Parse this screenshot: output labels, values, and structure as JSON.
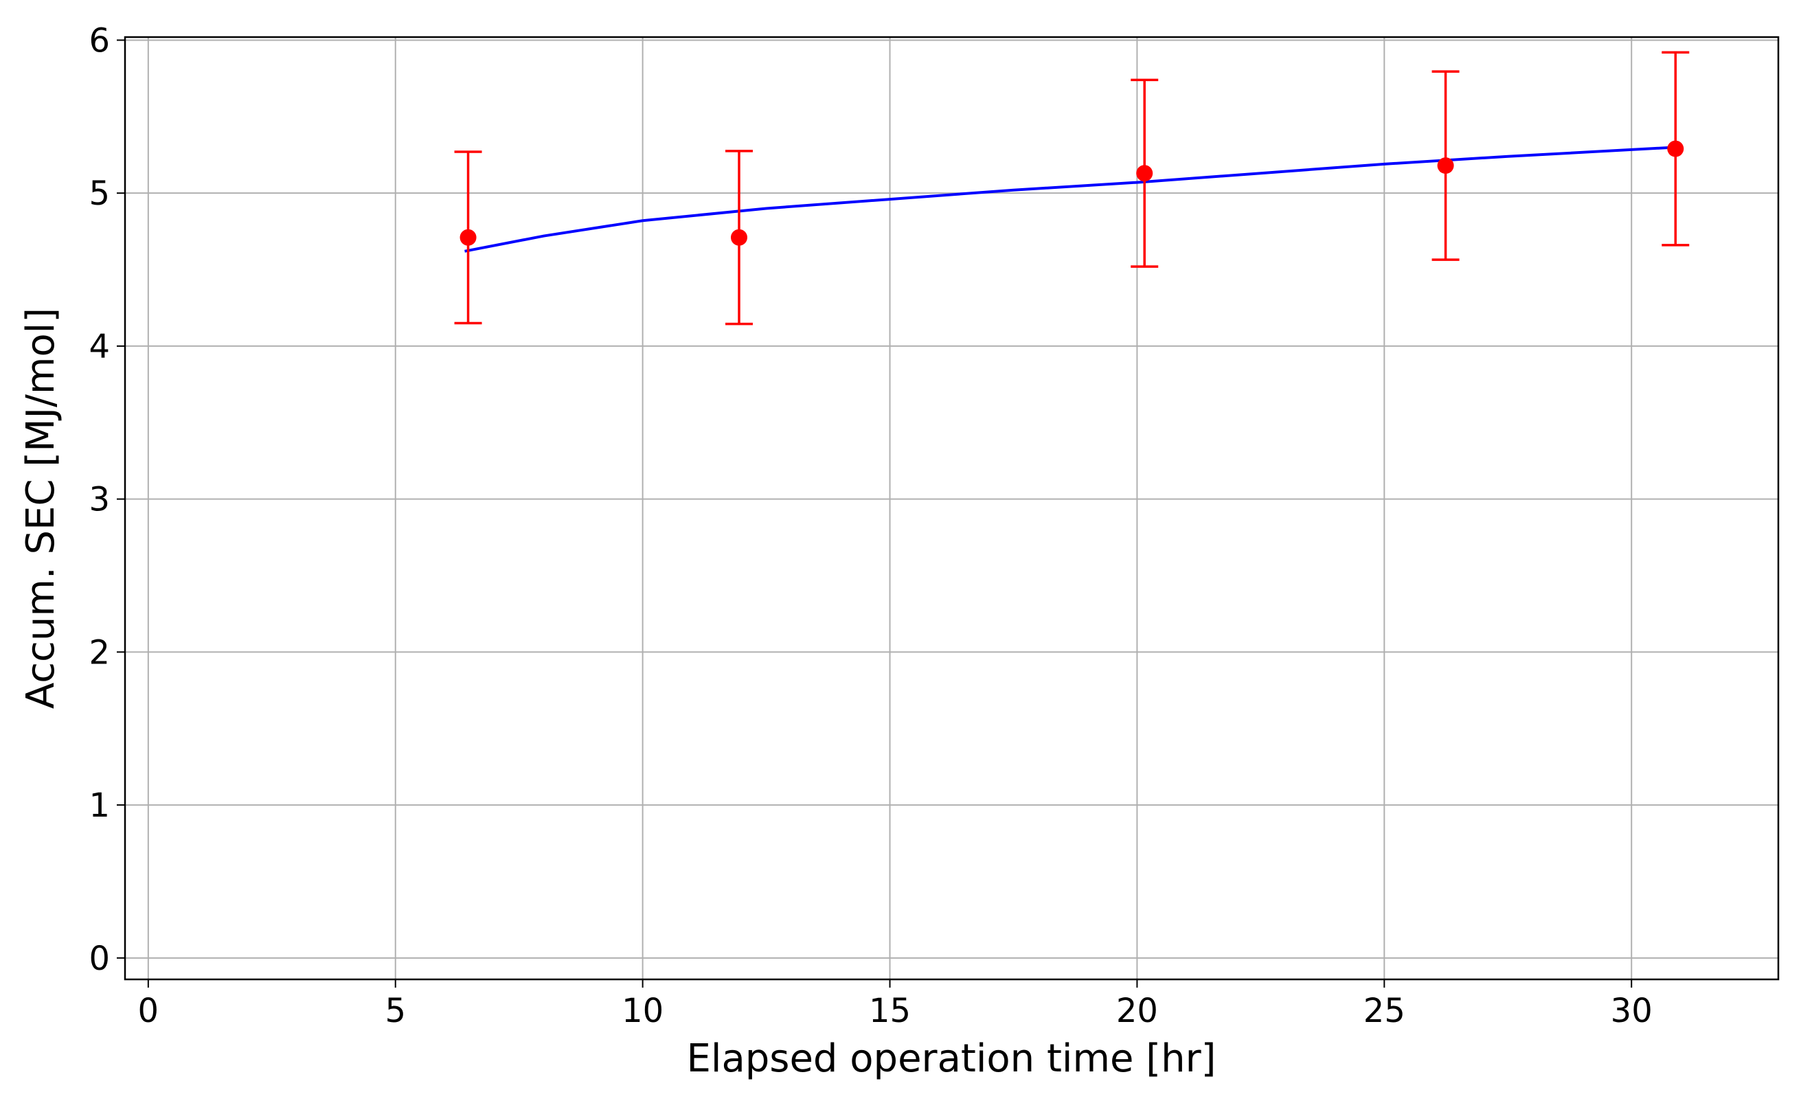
{
  "chart_data": {
    "type": "line",
    "xlabel": "Elapsed operation time [hr]",
    "ylabel": "Accum. SEC [MJ/mol]",
    "xlim": [
      -0.47,
      32.97
    ],
    "ylim": [
      -0.14,
      6.02
    ],
    "xticks": [
      0,
      5,
      10,
      15,
      20,
      25,
      30
    ],
    "yticks": [
      0,
      1,
      2,
      3,
      4,
      5,
      6
    ],
    "grid": true,
    "series": [
      {
        "color": "#0000ff",
        "x": [
          6.4,
          8,
          10,
          12.5,
          15,
          17.5,
          20,
          22.5,
          25,
          27.5,
          30.9
        ],
        "values": [
          4.62,
          4.72,
          4.82,
          4.9,
          4.96,
          5.02,
          5.07,
          5.13,
          5.19,
          5.24,
          5.3
        ]
      },
      {
        "color": "#ff0000",
        "x": [
          6.47,
          11.95,
          20.15,
          26.24,
          30.89
        ],
        "values": [
          4.71,
          4.71,
          5.13,
          5.18,
          5.29
        ],
        "errors": [
          0.56,
          0.565,
          0.61,
          0.615,
          0.63
        ]
      }
    ]
  }
}
